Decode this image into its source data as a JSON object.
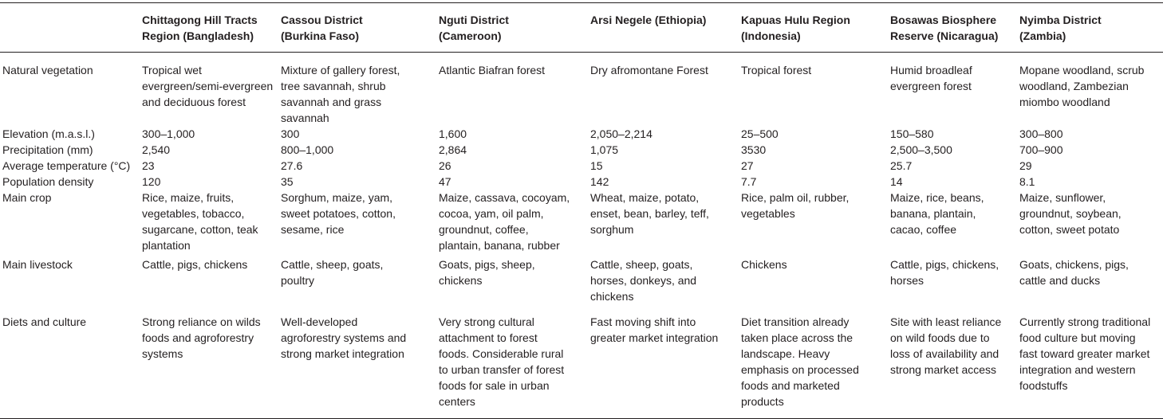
{
  "table": {
    "columns": [
      "",
      "Chittagong Hill Tracts\nRegion (Bangladesh)",
      "Cassou District\n(Burkina Faso)",
      "Nguti District\n(Cameroon)",
      "Arsi Negele (Ethiopia)",
      "Kapuas Hulu Region\n(Indonesia)",
      "Bosawas Biosphere\nReserve (Nicaragua)",
      "Nyimba District\n(Zambia)"
    ],
    "rows": [
      [
        "Natural vegetation",
        "Tropical wet\nevergreen/semi-evergreen\nand deciduous forest",
        "Mixture of gallery forest,\ntree savannah, shrub\nsavannah and grass\nsavannah",
        "Atlantic Biafran forest",
        "Dry afromontane Forest",
        "Tropical forest",
        "Humid broadleaf\nevergreen forest",
        "Mopane woodland, scrub\nwoodland, Zambezian\nmiombo woodland"
      ],
      [
        "Elevation (m.a.s.l.)",
        "300–1,000",
        "300",
        "1,600",
        "2,050–2,214",
        "25–500",
        "150–580",
        "300–800"
      ],
      [
        "Precipitation (mm)",
        "2,540",
        "800–1,000",
        "2,864",
        "1,075",
        "3530",
        "2,500–3,500",
        "700–900"
      ],
      [
        "Average temperature (°C)",
        "23",
        "27.6",
        "26",
        "15",
        "27",
        "25.7",
        "29"
      ],
      [
        "Population density",
        "120",
        "35",
        "47",
        "142",
        "7.7",
        "14",
        "8.1"
      ],
      [
        "Main crop",
        "Rice, maize, fruits,\nvegetables, tobacco,\nsugarcane, cotton, teak\nplantation",
        "Sorghum, maize, yam,\nsweet potatoes, cotton,\nsesame, rice",
        "Maize, cassava, cocoyam,\ncocoa, yam, oil palm,\ngroundnut, coffee,\nplantain, banana, rubber",
        "Wheat, maize, potato,\nenset, bean, barley, teff,\nsorghum",
        "Rice, palm oil, rubber,\nvegetables",
        "Maize, rice, beans,\nbanana, plantain,\ncacao, coffee",
        "Maize, sunflower,\ngroundnut, soybean,\ncotton, sweet potato"
      ],
      [
        "Main livestock",
        "Cattle, pigs, chickens",
        "Cattle, sheep, goats,\npoultry",
        "Goats, pigs, sheep,\nchickens",
        "Cattle, sheep, goats,\nhorses, donkeys, and\nchickens",
        "Chickens",
        "Cattle, pigs, chickens,\nhorses",
        "Goats, chickens, pigs,\ncattle and ducks"
      ],
      [
        "Diets and culture",
        "Strong reliance on wilds\nfoods and agroforestry\nsystems",
        "Well-developed\nagroforestry systems and\nstrong market integration",
        "Very strong cultural\nattachment to forest\nfoods. Considerable rural\nto urban transfer of forest\nfoods for sale in urban\ncenters",
        "Fast moving shift into\ngreater market integration",
        "Diet transition already\ntaken place across the\nlandscape. Heavy\nemphasis on processed\nfoods and marketed\nproducts",
        "Site with least reliance\non wild foods due to\nloss of availability and\nstrong market access",
        "Currently strong traditional\nfood culture but moving\nfast toward greater market\nintegration and western\nfoodstuffs"
      ]
    ]
  }
}
